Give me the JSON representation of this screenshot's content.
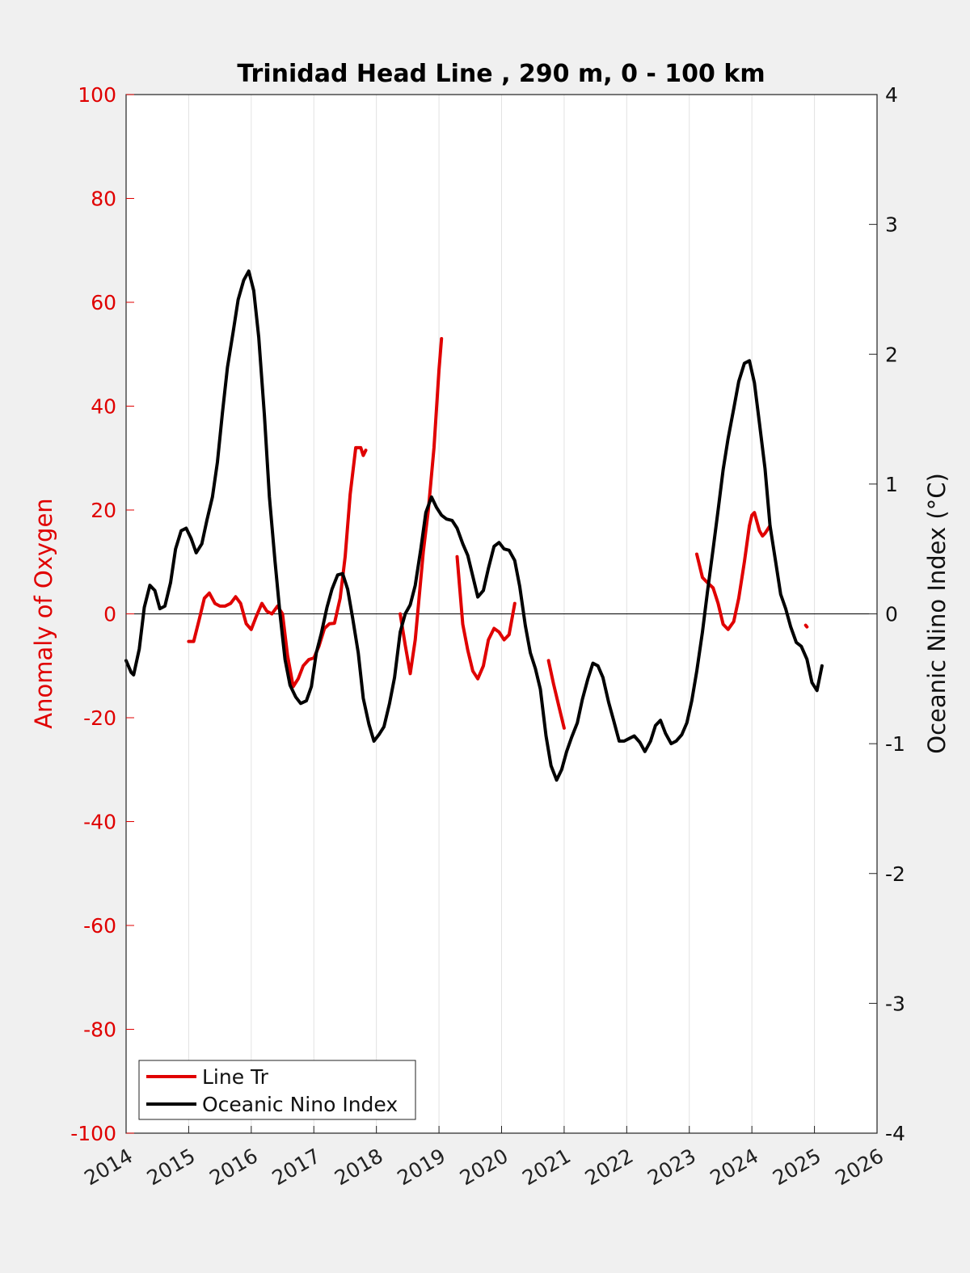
{
  "chart_data": {
    "type": "line",
    "title": "Trinidad Head Line , 290 m, 0 - 100 km",
    "xlabel": "",
    "ylabel_left": "Anomaly of Oxygen",
    "ylabel_right": "Oceanic Nino Index (°C)",
    "xlim": [
      2014,
      2026
    ],
    "ylim_left": [
      -100,
      100
    ],
    "ylim_right": [
      -4,
      4
    ],
    "x_ticks": [
      "2014",
      "2015",
      "2016",
      "2017",
      "2018",
      "2019",
      "2020",
      "2021",
      "2022",
      "2023",
      "2024",
      "2025",
      "2026"
    ],
    "y_ticks_left": [
      "100",
      "80",
      "60",
      "40",
      "20",
      "0",
      "-20",
      "-40",
      "-60",
      "-80",
      "-100"
    ],
    "y_ticks_right": [
      "4",
      "3",
      "2",
      "1",
      "0",
      "-1",
      "-2",
      "-3",
      "-4"
    ],
    "grid": "vertical",
    "legend_position": "bottom-left",
    "colors": {
      "line_tr": "#e00000",
      "oni": "#000000",
      "left_axis": "#e00000"
    },
    "series": [
      {
        "name": "Line Tr",
        "axis": "left",
        "color": "#e00000",
        "segments": [
          [
            [
              2015.0,
              -5.3
            ],
            [
              2015.08,
              -5.3
            ],
            [
              2015.17,
              -1
            ],
            [
              2015.25,
              3
            ],
            [
              2015.33,
              4
            ],
            [
              2015.42,
              2
            ],
            [
              2015.5,
              1.5
            ],
            [
              2015.58,
              1.5
            ],
            [
              2015.67,
              2
            ],
            [
              2015.75,
              3.3
            ],
            [
              2015.83,
              2
            ],
            [
              2015.92,
              -1.9
            ],
            [
              2016.0,
              -3
            ],
            [
              2016.08,
              -0.5
            ],
            [
              2016.17,
              2
            ],
            [
              2016.25,
              0.5
            ],
            [
              2016.33,
              0
            ],
            [
              2016.42,
              1.5
            ],
            [
              2016.5,
              0
            ],
            [
              2016.58,
              -8
            ],
            [
              2016.67,
              -14
            ],
            [
              2016.75,
              -12.5
            ],
            [
              2016.83,
              -10
            ],
            [
              2016.92,
              -8.8
            ],
            [
              2017.0,
              -8.5
            ],
            [
              2017.08,
              -6.3
            ],
            [
              2017.17,
              -2.8
            ],
            [
              2017.25,
              -1.9
            ],
            [
              2017.33,
              -1.8
            ],
            [
              2017.42,
              3
            ],
            [
              2017.5,
              11
            ],
            [
              2017.58,
              23
            ],
            [
              2017.67,
              32
            ],
            [
              2017.75,
              32
            ],
            [
              2017.79,
              30.5
            ],
            [
              2017.83,
              31.5
            ]
          ],
          [
            [
              2018.38,
              0
            ],
            [
              2018.46,
              -6
            ],
            [
              2018.54,
              -11.5
            ],
            [
              2018.62,
              -5
            ],
            [
              2018.75,
              12
            ],
            [
              2018.83,
              20
            ],
            [
              2018.92,
              32
            ],
            [
              2019.0,
              47
            ],
            [
              2019.04,
              53
            ]
          ],
          [
            [
              2019.29,
              11
            ],
            [
              2019.38,
              -2
            ],
            [
              2019.46,
              -7
            ],
            [
              2019.54,
              -11
            ],
            [
              2019.62,
              -12.5
            ],
            [
              2019.71,
              -10
            ],
            [
              2019.79,
              -5
            ],
            [
              2019.88,
              -2.8
            ],
            [
              2019.96,
              -3.5
            ],
            [
              2020.04,
              -5
            ],
            [
              2020.12,
              -4
            ],
            [
              2020.21,
              2
            ]
          ],
          [
            [
              2020.75,
              -9
            ],
            [
              2020.83,
              -13.5
            ],
            [
              2020.92,
              -18
            ],
            [
              2021.0,
              -22
            ]
          ],
          [
            [
              2023.12,
              11.5
            ],
            [
              2023.21,
              7
            ],
            [
              2023.29,
              6
            ],
            [
              2023.38,
              5
            ],
            [
              2023.46,
              2
            ],
            [
              2023.54,
              -2
            ],
            [
              2023.62,
              -3
            ],
            [
              2023.71,
              -1.5
            ],
            [
              2023.79,
              3
            ],
            [
              2023.88,
              10
            ],
            [
              2023.96,
              17
            ],
            [
              2024.0,
              19
            ],
            [
              2024.04,
              19.5
            ],
            [
              2024.12,
              16
            ],
            [
              2024.17,
              15
            ],
            [
              2024.21,
              15.5
            ],
            [
              2024.29,
              17
            ]
          ],
          [
            [
              2024.86,
              -2.2
            ],
            [
              2024.88,
              -2.5
            ]
          ]
        ]
      },
      {
        "name": "Oceanic Nino Index",
        "axis": "right",
        "color": "#000000",
        "segments": [
          [
            [
              2014.0,
              -0.36
            ],
            [
              2014.08,
              -0.45
            ],
            [
              2014.12,
              -0.47
            ],
            [
              2014.21,
              -0.27
            ],
            [
              2014.29,
              0.05
            ],
            [
              2014.38,
              0.22
            ],
            [
              2014.46,
              0.18
            ],
            [
              2014.54,
              0.04
            ],
            [
              2014.62,
              0.06
            ],
            [
              2014.71,
              0.24
            ],
            [
              2014.79,
              0.5
            ],
            [
              2014.88,
              0.64
            ],
            [
              2014.96,
              0.66
            ],
            [
              2015.04,
              0.58
            ],
            [
              2015.12,
              0.47
            ],
            [
              2015.21,
              0.54
            ],
            [
              2015.29,
              0.72
            ],
            [
              2015.38,
              0.9
            ],
            [
              2015.46,
              1.17
            ],
            [
              2015.54,
              1.55
            ],
            [
              2015.62,
              1.9
            ],
            [
              2015.71,
              2.17
            ],
            [
              2015.79,
              2.42
            ],
            [
              2015.88,
              2.57
            ],
            [
              2015.96,
              2.64
            ],
            [
              2016.04,
              2.49
            ],
            [
              2016.12,
              2.13
            ],
            [
              2016.21,
              1.53
            ],
            [
              2016.29,
              0.9
            ],
            [
              2016.38,
              0.4
            ],
            [
              2016.46,
              0.0
            ],
            [
              2016.54,
              -0.35
            ],
            [
              2016.62,
              -0.55
            ],
            [
              2016.71,
              -0.64
            ],
            [
              2016.79,
              -0.69
            ],
            [
              2016.88,
              -0.67
            ],
            [
              2016.96,
              -0.56
            ],
            [
              2017.04,
              -0.3
            ],
            [
              2017.12,
              -0.15
            ],
            [
              2017.21,
              0.05
            ],
            [
              2017.29,
              0.19
            ],
            [
              2017.38,
              0.3
            ],
            [
              2017.46,
              0.31
            ],
            [
              2017.54,
              0.19
            ],
            [
              2017.62,
              -0.03
            ],
            [
              2017.71,
              -0.3
            ],
            [
              2017.79,
              -0.65
            ],
            [
              2017.88,
              -0.85
            ],
            [
              2017.96,
              -0.98
            ],
            [
              2018.04,
              -0.93
            ],
            [
              2018.12,
              -0.87
            ],
            [
              2018.21,
              -0.69
            ],
            [
              2018.29,
              -0.49
            ],
            [
              2018.38,
              -0.14
            ],
            [
              2018.46,
              0.0
            ],
            [
              2018.54,
              0.07
            ],
            [
              2018.62,
              0.22
            ],
            [
              2018.71,
              0.5
            ],
            [
              2018.79,
              0.78
            ],
            [
              2018.88,
              0.9
            ],
            [
              2018.96,
              0.82
            ],
            [
              2019.04,
              0.76
            ],
            [
              2019.12,
              0.73
            ],
            [
              2019.21,
              0.72
            ],
            [
              2019.29,
              0.66
            ],
            [
              2019.38,
              0.54
            ],
            [
              2019.46,
              0.45
            ],
            [
              2019.54,
              0.29
            ],
            [
              2019.62,
              0.13
            ],
            [
              2019.71,
              0.18
            ],
            [
              2019.79,
              0.35
            ],
            [
              2019.88,
              0.52
            ],
            [
              2019.96,
              0.55
            ],
            [
              2020.04,
              0.5
            ],
            [
              2020.12,
              0.49
            ],
            [
              2020.21,
              0.41
            ],
            [
              2020.29,
              0.21
            ],
            [
              2020.38,
              -0.09
            ],
            [
              2020.46,
              -0.3
            ],
            [
              2020.54,
              -0.42
            ],
            [
              2020.62,
              -0.58
            ],
            [
              2020.71,
              -0.94
            ],
            [
              2020.79,
              -1.17
            ],
            [
              2020.88,
              -1.28
            ],
            [
              2020.96,
              -1.2
            ],
            [
              2021.04,
              -1.06
            ],
            [
              2021.12,
              -0.95
            ],
            [
              2021.21,
              -0.84
            ],
            [
              2021.29,
              -0.66
            ],
            [
              2021.38,
              -0.5
            ],
            [
              2021.46,
              -0.38
            ],
            [
              2021.54,
              -0.4
            ],
            [
              2021.62,
              -0.49
            ],
            [
              2021.71,
              -0.68
            ],
            [
              2021.79,
              -0.82
            ],
            [
              2021.88,
              -0.98
            ],
            [
              2021.96,
              -0.98
            ],
            [
              2022.04,
              -0.96
            ],
            [
              2022.12,
              -0.94
            ],
            [
              2022.21,
              -0.99
            ],
            [
              2022.29,
              -1.06
            ],
            [
              2022.38,
              -0.98
            ],
            [
              2022.46,
              -0.86
            ],
            [
              2022.54,
              -0.82
            ],
            [
              2022.62,
              -0.92
            ],
            [
              2022.71,
              -1.0
            ],
            [
              2022.79,
              -0.98
            ],
            [
              2022.88,
              -0.93
            ],
            [
              2022.96,
              -0.84
            ],
            [
              2023.04,
              -0.67
            ],
            [
              2023.12,
              -0.44
            ],
            [
              2023.21,
              -0.14
            ],
            [
              2023.29,
              0.17
            ],
            [
              2023.38,
              0.5
            ],
            [
              2023.46,
              0.8
            ],
            [
              2023.54,
              1.11
            ],
            [
              2023.62,
              1.35
            ],
            [
              2023.71,
              1.58
            ],
            [
              2023.79,
              1.79
            ],
            [
              2023.88,
              1.93
            ],
            [
              2023.96,
              1.95
            ],
            [
              2024.04,
              1.78
            ],
            [
              2024.12,
              1.47
            ],
            [
              2024.21,
              1.12
            ],
            [
              2024.29,
              0.68
            ],
            [
              2024.38,
              0.4
            ],
            [
              2024.46,
              0.15
            ],
            [
              2024.54,
              0.04
            ],
            [
              2024.62,
              -0.1
            ],
            [
              2024.71,
              -0.22
            ],
            [
              2024.79,
              -0.25
            ],
            [
              2024.88,
              -0.35
            ],
            [
              2024.96,
              -0.53
            ],
            [
              2025.04,
              -0.59
            ],
            [
              2025.12,
              -0.4
            ]
          ]
        ]
      }
    ]
  }
}
